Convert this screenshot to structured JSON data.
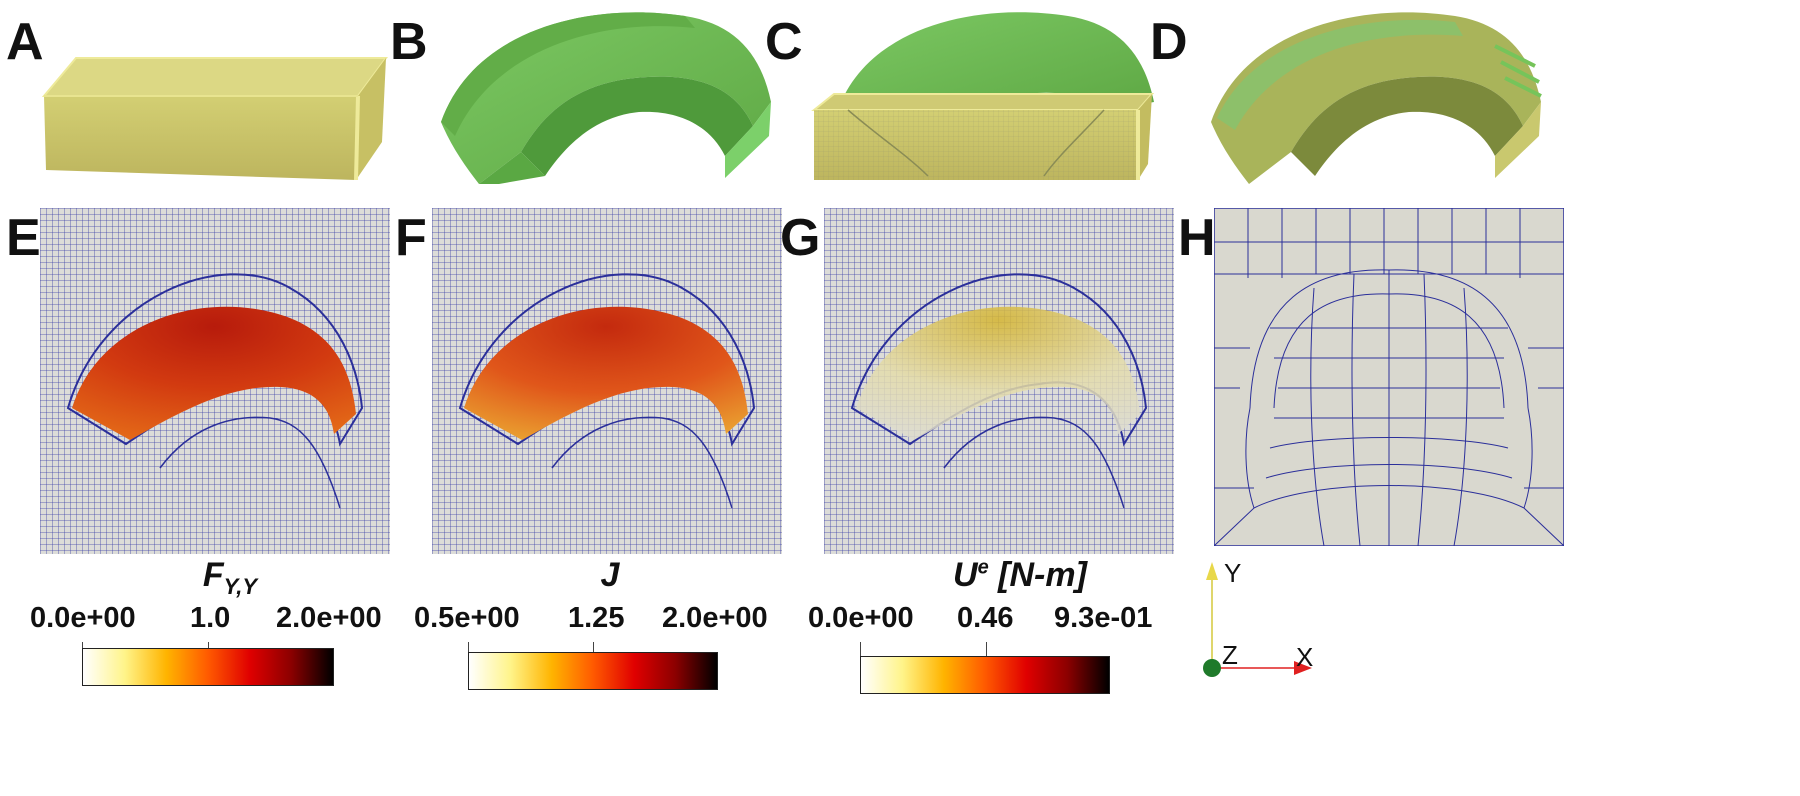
{
  "panels": {
    "A": "A",
    "B": "B",
    "C": "C",
    "D": "D",
    "E": "E",
    "F": "F",
    "G": "G",
    "H": "H"
  },
  "colorbars": [
    {
      "title_main": "F",
      "title_sub": "Y,Y",
      "ticks": [
        "0.0e+00",
        "1.0",
        "2.0e+00"
      ],
      "gradient": [
        "#ffffff",
        "#fff48a",
        "#ffb400",
        "#ff5a00",
        "#e00000",
        "#8b0000",
        "#000000"
      ]
    },
    {
      "title_main": "J",
      "ticks": [
        "0.5e+00",
        "1.25",
        "2.0e+00"
      ],
      "gradient": [
        "#ffffff",
        "#fff48a",
        "#ffb400",
        "#ff5a00",
        "#e00000",
        "#8b0000",
        "#000000"
      ]
    },
    {
      "title_main": "U",
      "title_sup": "e",
      "title_unit": " [N-m]",
      "ticks": [
        "0.0e+00",
        "0.46",
        "9.3e-01"
      ],
      "gradient": [
        "#ffffff",
        "#fff48a",
        "#ffb400",
        "#ff5a00",
        "#e00000",
        "#8b0000",
        "#000000"
      ]
    }
  ],
  "axes": {
    "y": "Y",
    "z": "Z",
    "x": "X"
  },
  "colors": {
    "box": "#c9c46a",
    "arch": "#6ebd55",
    "mesh_line": "#2b2f9a",
    "mesh_bg": "#d8d8d0",
    "heat_dark": "#c0220e",
    "heat_mid": "#e45a12",
    "heat_light": "#e8cf40"
  }
}
